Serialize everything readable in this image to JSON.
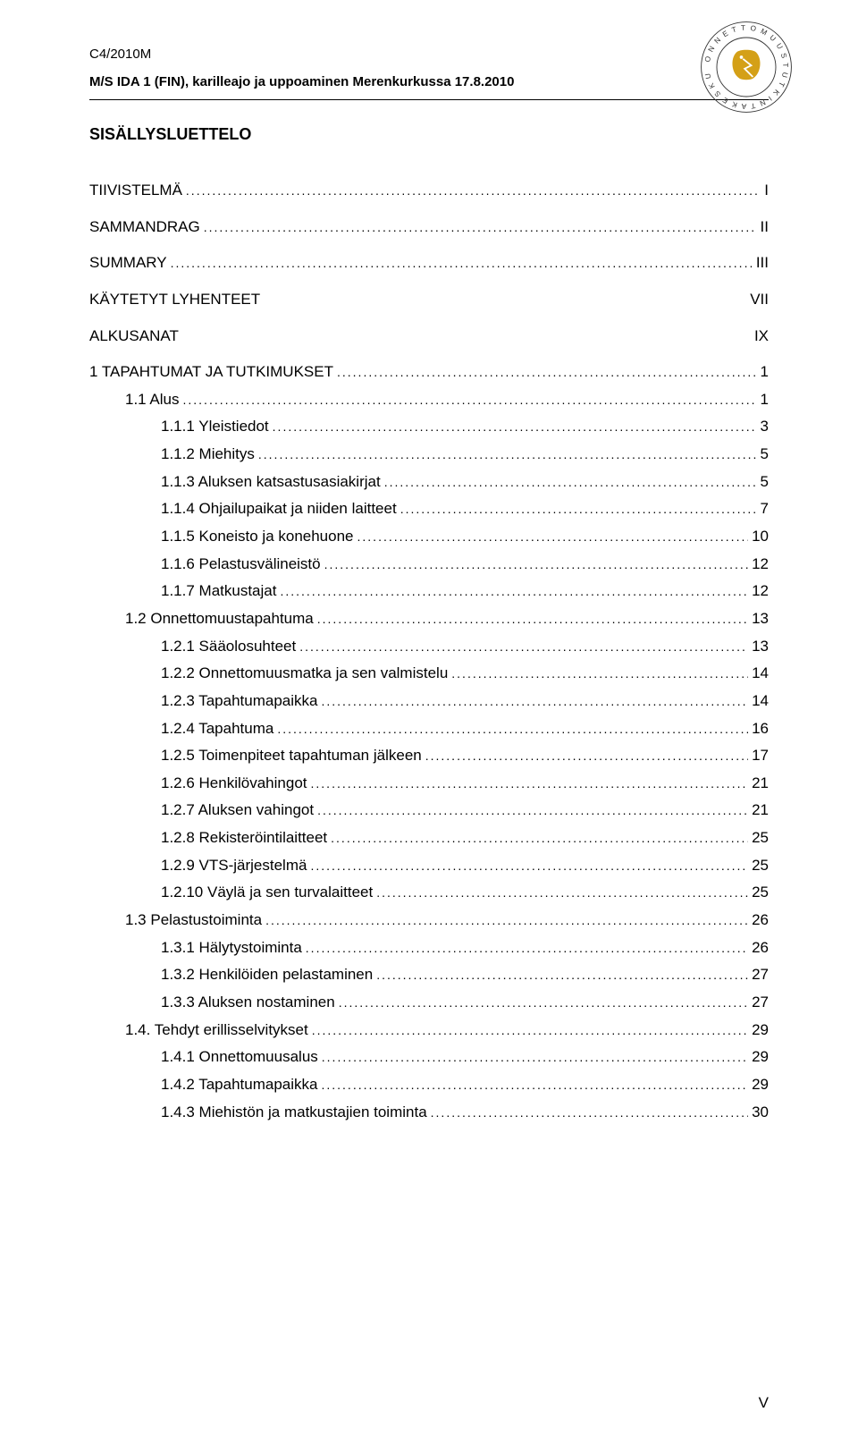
{
  "header": {
    "docid": "C4/2010M",
    "title": "M/S IDA 1 (FIN), karilleajo ja uppoaminen Merenkurkussa 17.8.2010"
  },
  "logo": {
    "outer_text": "ONNETTOMUUSTUTKINTAKESKUS",
    "color_ring": "#333333",
    "color_crest": "#d4a017"
  },
  "section_title": "SISÄLLYSLUETTELO",
  "toc": [
    {
      "label": "TIIVISTELMÄ",
      "page": "I",
      "indent": 0
    },
    {
      "label": "SAMMANDRAG",
      "page": "II",
      "indent": 0
    },
    {
      "label": "SUMMARY",
      "page": "III",
      "indent": 0
    },
    {
      "label": "KÄYTETYT LYHENTEET",
      "page": "VII",
      "indent": 0,
      "nodots": true
    },
    {
      "label": "ALKUSANAT",
      "page": "IX",
      "indent": 0,
      "nodots": true
    },
    {
      "label": "1  TAPAHTUMAT JA TUTKIMUKSET",
      "page": "1",
      "indent": 1
    },
    {
      "label": "1.1  Alus",
      "page": "1",
      "indent": 2
    },
    {
      "label": "1.1.1  Yleistiedot",
      "page": "3",
      "indent": 3
    },
    {
      "label": "1.1.2  Miehitys",
      "page": "5",
      "indent": 3
    },
    {
      "label": "1.1.3  Aluksen katsastusasiakirjat",
      "page": "5",
      "indent": 3
    },
    {
      "label": "1.1.4  Ohjailupaikat ja niiden laitteet",
      "page": "7",
      "indent": 3
    },
    {
      "label": "1.1.5  Koneisto ja konehuone",
      "page": "10",
      "indent": 3
    },
    {
      "label": "1.1.6  Pelastusvälineistö",
      "page": "12",
      "indent": 3
    },
    {
      "label": "1.1.7  Matkustajat",
      "page": "12",
      "indent": 3
    },
    {
      "label": "1.2  Onnettomuustapahtuma",
      "page": "13",
      "indent": 2
    },
    {
      "label": "1.2.1  Sääolosuhteet",
      "page": "13",
      "indent": 3
    },
    {
      "label": "1.2.2  Onnettomuusmatka ja sen valmistelu",
      "page": "14",
      "indent": 3
    },
    {
      "label": "1.2.3  Tapahtumapaikka",
      "page": "14",
      "indent": 3
    },
    {
      "label": "1.2.4  Tapahtuma",
      "page": "16",
      "indent": 3
    },
    {
      "label": "1.2.5  Toimenpiteet tapahtuman jälkeen",
      "page": "17",
      "indent": 3
    },
    {
      "label": "1.2.6  Henkilövahingot",
      "page": "21",
      "indent": 3
    },
    {
      "label": "1.2.7  Aluksen vahingot",
      "page": "21",
      "indent": 3
    },
    {
      "label": "1.2.8  Rekisteröintilaitteet",
      "page": "25",
      "indent": 3
    },
    {
      "label": "1.2.9  VTS-järjestelmä",
      "page": "25",
      "indent": 3
    },
    {
      "label": "1.2.10 Väylä ja sen turvalaitteet",
      "page": "25",
      "indent": 3
    },
    {
      "label": "1.3  Pelastustoiminta",
      "page": "26",
      "indent": 2
    },
    {
      "label": "1.3.1  Hälytystoiminta",
      "page": "26",
      "indent": 3
    },
    {
      "label": "1.3.2  Henkilöiden pelastaminen",
      "page": "27",
      "indent": 3
    },
    {
      "label": "1.3.3  Aluksen nostaminen",
      "page": "27",
      "indent": 3
    },
    {
      "label": "1.4. Tehdyt erillisselvitykset",
      "page": "29",
      "indent": 2
    },
    {
      "label": "1.4.1  Onnettomuusalus",
      "page": "29",
      "indent": 3
    },
    {
      "label": "1.4.2  Tapahtumapaikka",
      "page": "29",
      "indent": 3
    },
    {
      "label": "1.4.3  Miehistön ja matkustajien toiminta",
      "page": "30",
      "indent": 3
    }
  ],
  "page_number": "V"
}
